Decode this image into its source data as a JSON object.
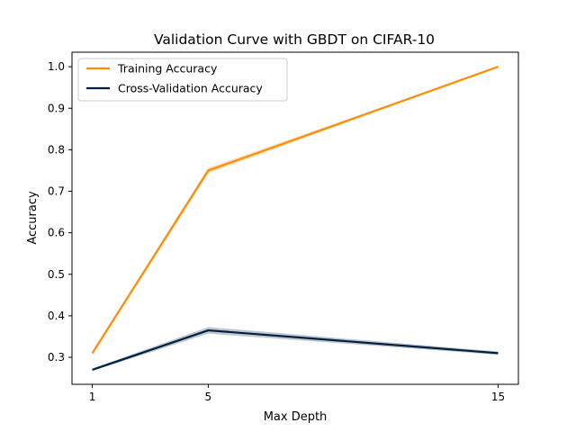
{
  "chart_data": {
    "type": "line",
    "title": "Validation Curve with GBDT on CIFAR-10",
    "xlabel": "Max Depth",
    "ylabel": "Accuracy",
    "x": [
      1,
      5,
      15
    ],
    "xticks": [
      1,
      5,
      15
    ],
    "xlim": [
      0.3,
      15.7
    ],
    "ylim": [
      0.235,
      1.035
    ],
    "yticks": [
      0.3,
      0.4,
      0.5,
      0.6,
      0.7,
      0.8,
      0.9,
      1.0
    ],
    "ytick_labels": [
      "0.3",
      "0.4",
      "0.5",
      "0.6",
      "0.7",
      "0.8",
      "0.9",
      "1.0"
    ],
    "grid": false,
    "legend_position": "top-left",
    "series": [
      {
        "name": "Training Accuracy",
        "color": "#ff8c00",
        "values": [
          0.31,
          0.75,
          1.0
        ],
        "band": [
          0.004,
          0.007,
          0.0
        ]
      },
      {
        "name": "Cross-Validation Accuracy",
        "color": "#00203f",
        "values": [
          0.27,
          0.365,
          0.31
        ],
        "band": [
          0.003,
          0.008,
          0.004
        ]
      }
    ]
  }
}
